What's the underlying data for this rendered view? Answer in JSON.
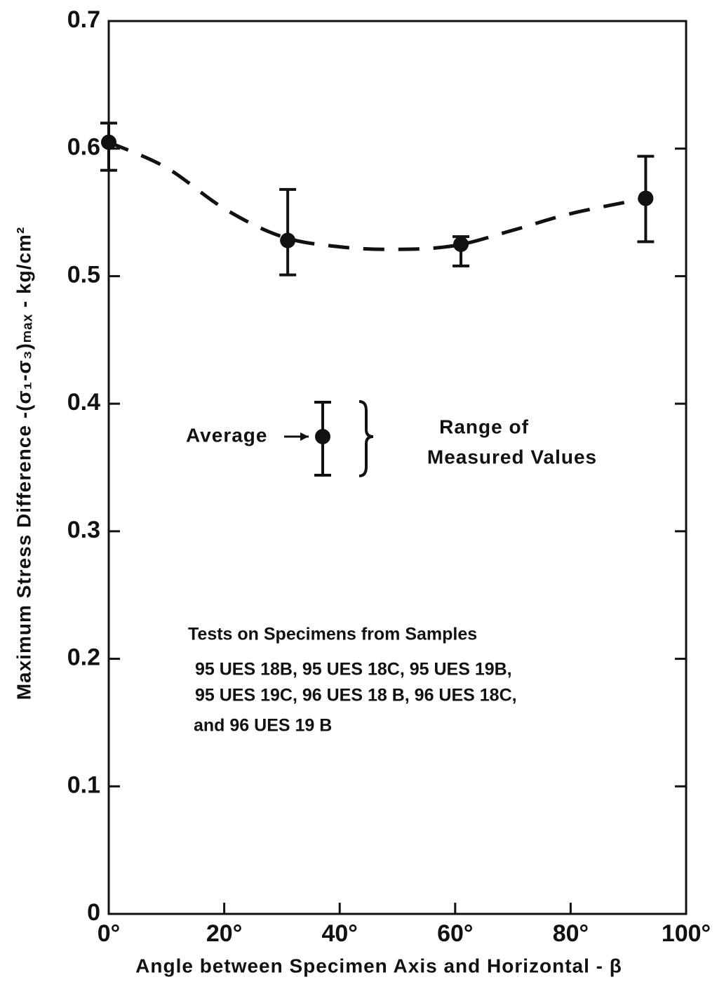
{
  "chart_data": {
    "type": "errorbar",
    "ylabel": "Maximum Stress Difference -(σ₁-σ₃)ₘₐₓ - kg/cm²",
    "xlabel": "Angle between Specimen Axis and Horizontal - β",
    "xlim": [
      0,
      100
    ],
    "xticks": [
      {
        "value": 0,
        "label": "0°"
      },
      {
        "value": 20,
        "label": "20°"
      },
      {
        "value": 40,
        "label": "40°"
      },
      {
        "value": 60,
        "label": "60°"
      },
      {
        "value": 80,
        "label": "80°"
      },
      {
        "value": 100,
        "label": "100°"
      }
    ],
    "ylim": [
      0,
      0.7
    ],
    "yticks": [
      0,
      0.1,
      0.2,
      0.3,
      0.4,
      0.5,
      0.6,
      0.7
    ],
    "color": "#111111",
    "series": [
      {
        "x": [
          0,
          31,
          61,
          93
        ],
        "values": [
          0.605,
          0.528,
          0.525,
          0.561
        ],
        "lower": [
          0.583,
          0.501,
          0.508,
          0.527
        ],
        "upper": [
          0.62,
          0.568,
          0.531,
          0.594
        ]
      }
    ],
    "curve": {
      "x": [
        0,
        10,
        20,
        30,
        40,
        50,
        60,
        70,
        80,
        93
      ],
      "values": [
        0.605,
        0.585,
        0.553,
        0.531,
        0.523,
        0.521,
        0.524,
        0.536,
        0.549,
        0.561
      ]
    },
    "legend": {
      "average": "Average",
      "range": [
        "Range of",
        "Measured Values"
      ]
    },
    "note": [
      "Tests on Specimens from Samples",
      "95 UES 18B, 95 UES 18C, 95 UES 19B,",
      "95 UES 19C, 96 UES 18 B, 96 UES 18C,",
      "and 96 UES 19 B"
    ]
  }
}
